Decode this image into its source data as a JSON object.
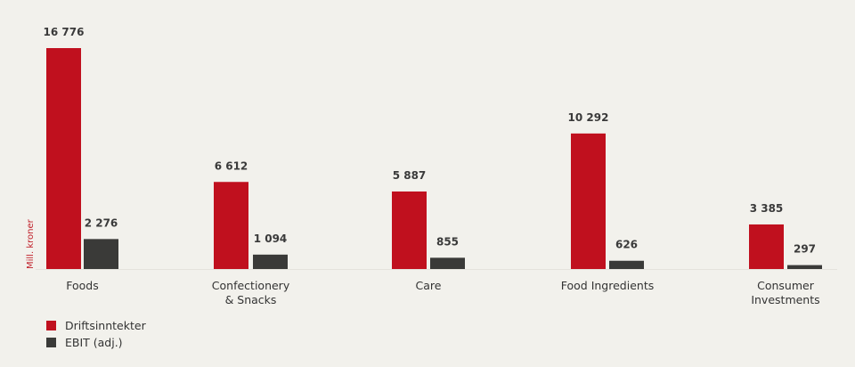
{
  "chart_data": {
    "type": "bar",
    "ylabel": "Mill. kroner",
    "categories": [
      [
        "Foods"
      ],
      [
        "Confectionery",
        "& Snacks"
      ],
      [
        "Care"
      ],
      [
        "Food Ingredients"
      ],
      [
        "Consumer",
        "Investments"
      ]
    ],
    "series": [
      {
        "name": "Driftsinntekter",
        "color": "#c0101e",
        "values": [
          16776,
          6612,
          5887,
          10292,
          3385
        ],
        "labels": [
          "16 776",
          "6 612",
          "5 887",
          "10 292",
          "3 385"
        ]
      },
      {
        "name": "EBIT (adj.)",
        "color": "#3a3a38",
        "values": [
          2276,
          1094,
          855,
          626,
          297
        ],
        "labels": [
          "2 276",
          "1 094",
          "855",
          "626",
          "297"
        ]
      }
    ],
    "legend": "bottom-left",
    "grid": false
  }
}
